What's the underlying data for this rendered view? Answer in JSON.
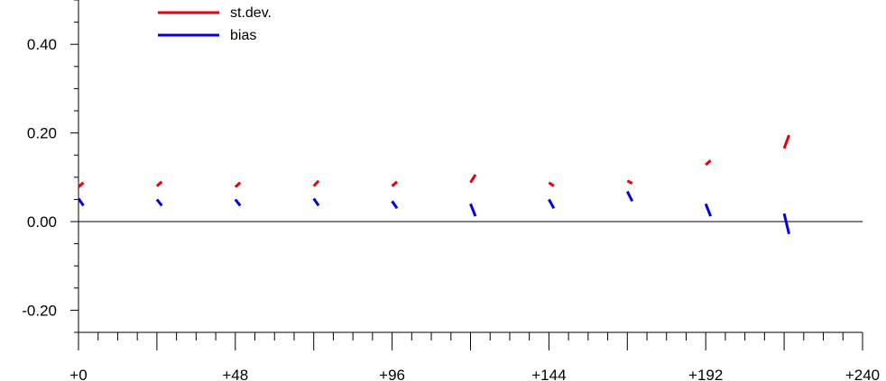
{
  "chart_data": {
    "type": "line",
    "title": "",
    "xlabel": "",
    "ylabel": "",
    "xlim": [
      0,
      240
    ],
    "ylim": [
      -0.25,
      0.5
    ],
    "x_ticks": [
      "+0",
      "+48",
      "+96",
      "+144",
      "+192",
      "+240"
    ],
    "y_ticks": [
      "0.40",
      "0.20",
      "0.00",
      "-0.20"
    ],
    "zero_line": true,
    "grid": false,
    "legend_position": "top-left",
    "series": [
      {
        "name": "st.dev.",
        "color": "#e8000b",
        "segments": [
          {
            "x": [
              0,
              1.5
            ],
            "y": [
              0.078,
              0.088
            ]
          },
          {
            "x": [
              24,
              25.5
            ],
            "y": [
              0.08,
              0.09
            ]
          },
          {
            "x": [
              48,
              49.5
            ],
            "y": [
              0.078,
              0.088
            ]
          },
          {
            "x": [
              72,
              73.5
            ],
            "y": [
              0.08,
              0.092
            ]
          },
          {
            "x": [
              96,
              97.5
            ],
            "y": [
              0.08,
              0.09
            ]
          },
          {
            "x": [
              120,
              121.5
            ],
            "y": [
              0.088,
              0.106
            ]
          },
          {
            "x": [
              144,
              145.5
            ],
            "y": [
              0.088,
              0.08
            ]
          },
          {
            "x": [
              168,
              169.5
            ],
            "y": [
              0.092,
              0.086
            ]
          },
          {
            "x": [
              192,
              193.5
            ],
            "y": [
              0.128,
              0.138
            ]
          },
          {
            "x": [
              216,
              217.5
            ],
            "y": [
              0.165,
              0.195
            ]
          }
        ]
      },
      {
        "name": "bias",
        "color": "#0000e6",
        "segments": [
          {
            "x": [
              0,
              1.5
            ],
            "y": [
              0.052,
              0.036
            ]
          },
          {
            "x": [
              24,
              25.5
            ],
            "y": [
              0.05,
              0.036
            ]
          },
          {
            "x": [
              48,
              49.5
            ],
            "y": [
              0.05,
              0.036
            ]
          },
          {
            "x": [
              72,
              73.5
            ],
            "y": [
              0.052,
              0.036
            ]
          },
          {
            "x": [
              96,
              97.5
            ],
            "y": [
              0.046,
              0.03
            ]
          },
          {
            "x": [
              120,
              121.5
            ],
            "y": [
              0.04,
              0.012
            ]
          },
          {
            "x": [
              144,
              145.5
            ],
            "y": [
              0.05,
              0.03
            ]
          },
          {
            "x": [
              168,
              169.5
            ],
            "y": [
              0.068,
              0.046
            ]
          },
          {
            "x": [
              192,
              193.5
            ],
            "y": [
              0.04,
              0.012
            ]
          },
          {
            "x": [
              216,
              217.5
            ],
            "y": [
              0.018,
              -0.028
            ]
          }
        ]
      }
    ]
  }
}
